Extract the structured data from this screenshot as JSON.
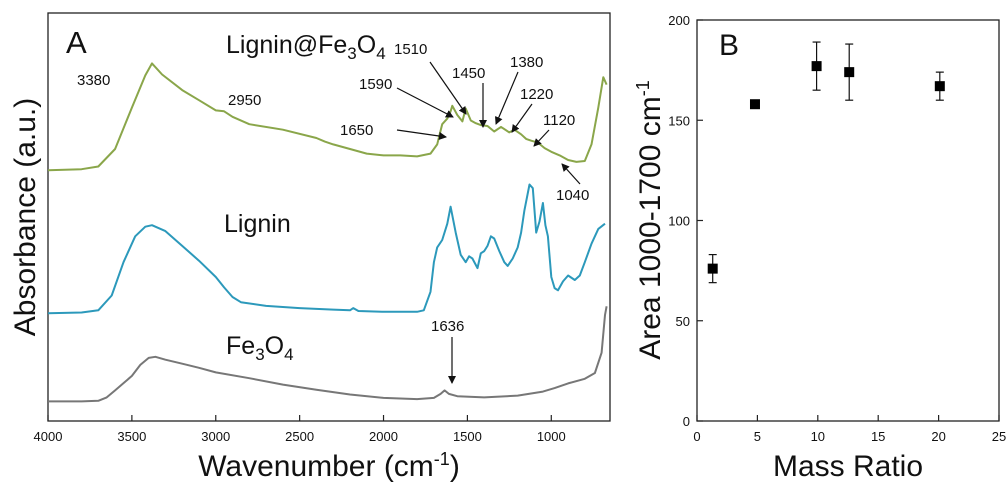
{
  "chart_data": [
    {
      "panel": "A",
      "type": "line",
      "xlabel": "Wavenumber (cm",
      "xlabel_sup": "-1",
      "xlabel_end": ")",
      "ylabel": "Absorbance (a.u.)",
      "xlim": [
        4000,
        650
      ],
      "x_reversed": true,
      "xticks": [
        4000,
        3500,
        3000,
        2500,
        2000,
        1500,
        1000
      ],
      "yticks_shown": false,
      "series": [
        {
          "name": "Lignin@Fe3O4",
          "label_parts": [
            "Lignin@Fe",
            "3",
            "O",
            "4"
          ],
          "color": "#8aa64a",
          "points": [
            [
              4000,
              0.2
            ],
            [
              3800,
              0.3
            ],
            [
              3700,
              0.6
            ],
            [
              3600,
              2.5
            ],
            [
              3500,
              7
            ],
            [
              3420,
              10.5
            ],
            [
              3380,
              11.8
            ],
            [
              3320,
              10.6
            ],
            [
              3200,
              8.9
            ],
            [
              3100,
              7.8
            ],
            [
              3000,
              6.7
            ],
            [
              2950,
              6.6
            ],
            [
              2900,
              6.0
            ],
            [
              2800,
              5.2
            ],
            [
              2600,
              4.6
            ],
            [
              2400,
              3.7
            ],
            [
              2350,
              3.3
            ],
            [
              2300,
              3.0
            ],
            [
              2200,
              2.5
            ],
            [
              2100,
              2.0
            ],
            [
              2000,
              1.8
            ],
            [
              1900,
              1.8
            ],
            [
              1800,
              1.7
            ],
            [
              1720,
              2.0
            ],
            [
              1680,
              3.0
            ],
            [
              1650,
              5.2
            ],
            [
              1620,
              5.8
            ],
            [
              1600,
              6.6
            ],
            [
              1590,
              7.2
            ],
            [
              1560,
              6.2
            ],
            [
              1530,
              5.5
            ],
            [
              1510,
              6.9
            ],
            [
              1480,
              5.6
            ],
            [
              1450,
              5.3
            ],
            [
              1420,
              5.1
            ],
            [
              1380,
              5.0
            ],
            [
              1340,
              4.4
            ],
            [
              1300,
              4.9
            ],
            [
              1250,
              4.3
            ],
            [
              1220,
              4.6
            ],
            [
              1180,
              4.1
            ],
            [
              1150,
              3.6
            ],
            [
              1120,
              3.4
            ],
            [
              1080,
              3.2
            ],
            [
              1040,
              2.6
            ],
            [
              1000,
              2.2
            ],
            [
              950,
              1.8
            ],
            [
              900,
              1.3
            ],
            [
              850,
              1.1
            ],
            [
              800,
              1.2
            ],
            [
              760,
              3.0
            ],
            [
              720,
              7.0
            ],
            [
              690,
              10.3
            ],
            [
              670,
              9.5
            ]
          ]
        },
        {
          "name": "Lignin",
          "label_parts": [
            "Lignin"
          ],
          "color": "#2c99bb",
          "points": [
            [
              4000,
              0.1
            ],
            [
              3800,
              0.2
            ],
            [
              3700,
              0.5
            ],
            [
              3620,
              2.5
            ],
            [
              3550,
              7.0
            ],
            [
              3480,
              10.5
            ],
            [
              3420,
              11.8
            ],
            [
              3380,
              12.0
            ],
            [
              3300,
              11.2
            ],
            [
              3200,
              9.2
            ],
            [
              3100,
              7.2
            ],
            [
              3000,
              5.0
            ],
            [
              2950,
              3.6
            ],
            [
              2900,
              2.3
            ],
            [
              2850,
              1.6
            ],
            [
              2700,
              1.1
            ],
            [
              2500,
              0.8
            ],
            [
              2300,
              0.6
            ],
            [
              2200,
              0.5
            ],
            [
              2180,
              0.8
            ],
            [
              2150,
              0.4
            ],
            [
              2000,
              0.3
            ],
            [
              1800,
              0.3
            ],
            [
              1760,
              0.5
            ],
            [
              1720,
              3.0
            ],
            [
              1700,
              7.0
            ],
            [
              1680,
              9.0
            ],
            [
              1650,
              10.0
            ],
            [
              1620,
              12.2
            ],
            [
              1600,
              14.5
            ],
            [
              1570,
              11.0
            ],
            [
              1540,
              8.0
            ],
            [
              1510,
              7.0
            ],
            [
              1490,
              7.8
            ],
            [
              1470,
              7.5
            ],
            [
              1440,
              6.2
            ],
            [
              1420,
              8.2
            ],
            [
              1400,
              8.5
            ],
            [
              1380,
              9.2
            ],
            [
              1360,
              10.5
            ],
            [
              1340,
              10.2
            ],
            [
              1310,
              8.5
            ],
            [
              1280,
              7.0
            ],
            [
              1260,
              6.5
            ],
            [
              1230,
              7.5
            ],
            [
              1200,
              9.0
            ],
            [
              1180,
              11.0
            ],
            [
              1160,
              14.0
            ],
            [
              1130,
              17.5
            ],
            [
              1110,
              17.0
            ],
            [
              1090,
              11.0
            ],
            [
              1070,
              12.5
            ],
            [
              1050,
              15.0
            ],
            [
              1035,
              12.0
            ],
            [
              1020,
              10.5
            ],
            [
              1000,
              5.0
            ],
            [
              980,
              3.5
            ],
            [
              960,
              3.2
            ],
            [
              930,
              4.4
            ],
            [
              900,
              5.2
            ],
            [
              860,
              4.6
            ],
            [
              830,
              5.2
            ],
            [
              800,
              7.0
            ],
            [
              760,
              9.5
            ],
            [
              720,
              11.5
            ],
            [
              680,
              12.2
            ]
          ]
        },
        {
          "name": "Fe3O4",
          "label_parts": [
            "Fe",
            "3",
            "O",
            "4"
          ],
          "color": "#777777",
          "points": [
            [
              4000,
              0.1
            ],
            [
              3900,
              0.1
            ],
            [
              3800,
              0.1
            ],
            [
              3700,
              0.2
            ],
            [
              3650,
              0.8
            ],
            [
              3600,
              2.0
            ],
            [
              3500,
              4.5
            ],
            [
              3450,
              6.4
            ],
            [
              3400,
              7.6
            ],
            [
              3360,
              7.8
            ],
            [
              3300,
              7.3
            ],
            [
              3200,
              6.6
            ],
            [
              3100,
              5.9
            ],
            [
              3000,
              5.1
            ],
            [
              2800,
              4.1
            ],
            [
              2600,
              3.0
            ],
            [
              2400,
              2.1
            ],
            [
              2200,
              1.3
            ],
            [
              2000,
              0.7
            ],
            [
              1800,
              0.5
            ],
            [
              1700,
              0.7
            ],
            [
              1660,
              1.4
            ],
            [
              1636,
              2.0
            ],
            [
              1610,
              1.4
            ],
            [
              1560,
              1.0
            ],
            [
              1400,
              0.8
            ],
            [
              1200,
              1.1
            ],
            [
              1050,
              1.8
            ],
            [
              980,
              2.4
            ],
            [
              900,
              3.2
            ],
            [
              800,
              4.0
            ],
            [
              740,
              5.0
            ],
            [
              700,
              8.5
            ],
            [
              680,
              15.0
            ],
            [
              670,
              16.5
            ]
          ]
        }
      ],
      "annotations": {
        "panel_label": "A",
        "peaks_top": [
          "3380",
          "2950",
          "1650",
          "1590",
          "1510",
          "1450",
          "1380",
          "1220",
          "1120",
          "1040"
        ],
        "peak_bottom": "1636"
      }
    },
    {
      "panel": "B",
      "type": "scatter",
      "xlabel": "Mass Ratio",
      "ylabel": "Area 1000-1700 cm",
      "ylabel_sup": "-1",
      "xlim": [
        0,
        25
      ],
      "ylim": [
        0,
        200
      ],
      "xticks": [
        0,
        5,
        10,
        15,
        20,
        25
      ],
      "yticks": [
        0,
        50,
        100,
        150,
        200
      ],
      "marker": "square",
      "points": [
        {
          "x": 1.3,
          "y": 76,
          "err": 7
        },
        {
          "x": 4.8,
          "y": 158,
          "err": 2
        },
        {
          "x": 9.9,
          "y": 177,
          "err": 12
        },
        {
          "x": 12.6,
          "y": 174,
          "err": 14
        },
        {
          "x": 20.1,
          "y": 167,
          "err": 7
        }
      ],
      "annotations": {
        "panel_label": "B"
      }
    }
  ]
}
